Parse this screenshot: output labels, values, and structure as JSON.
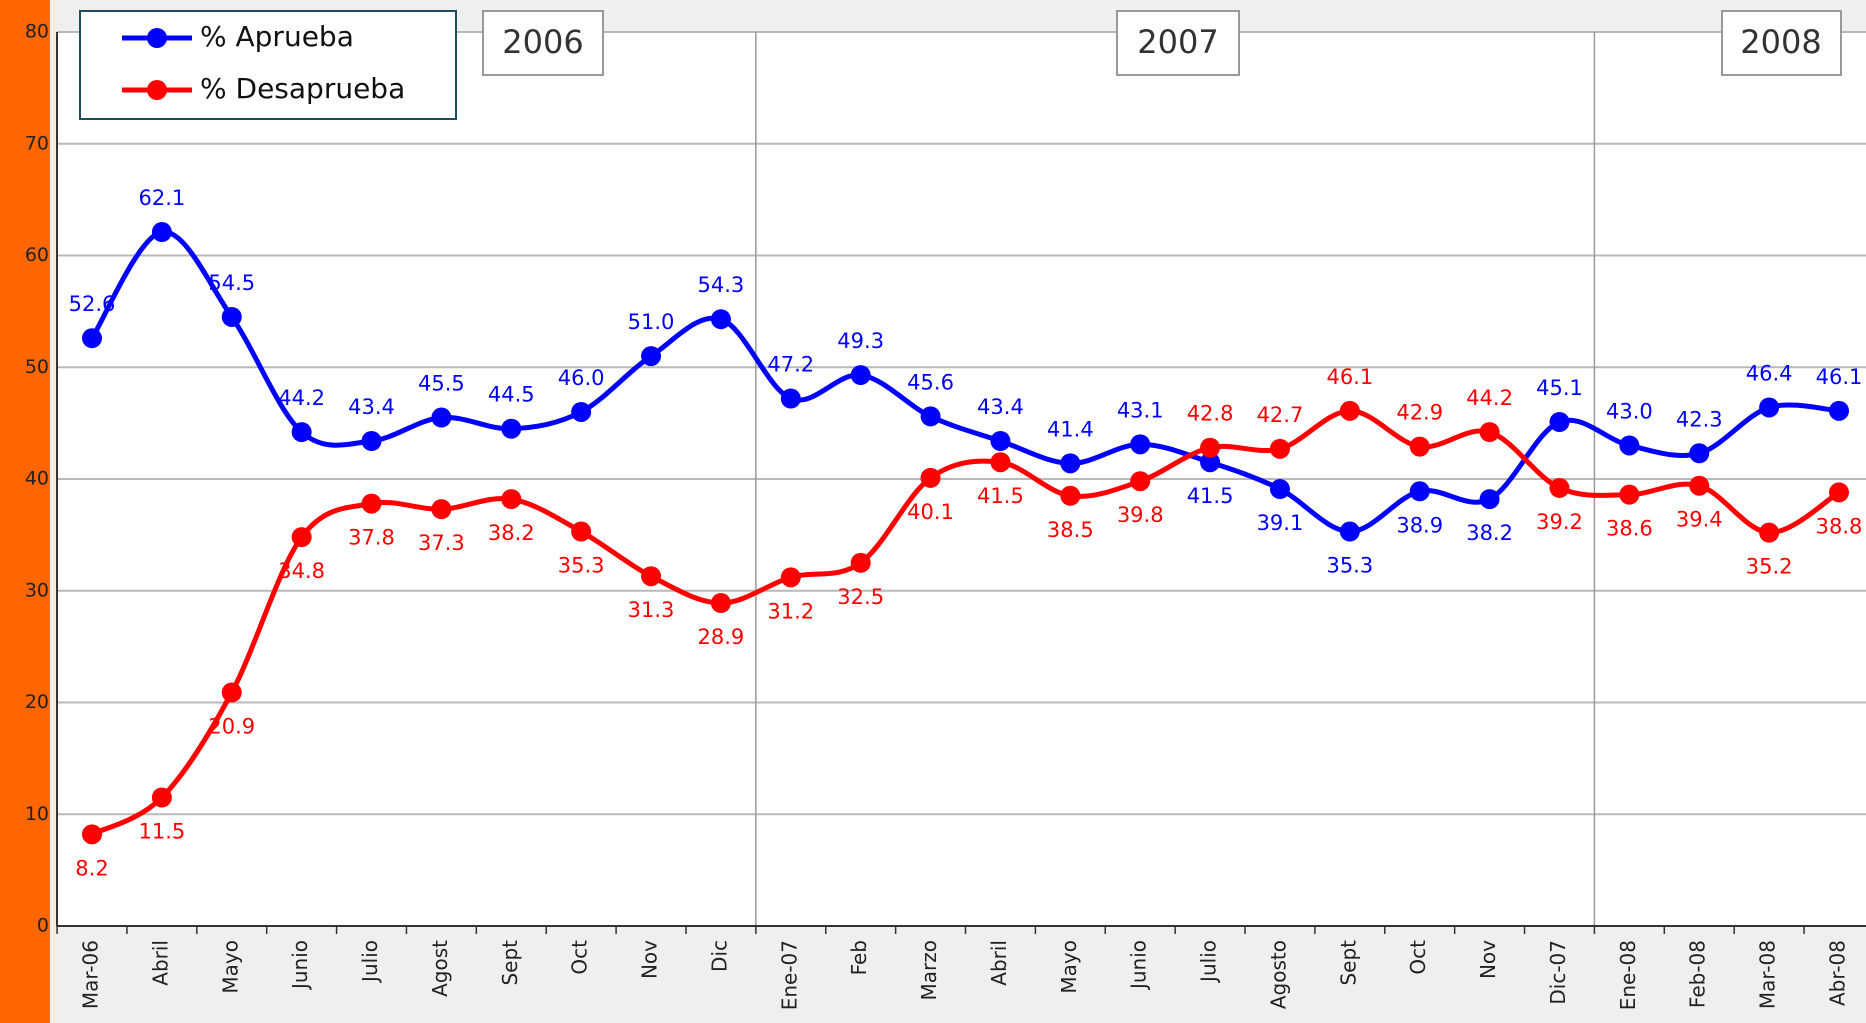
{
  "chart_data": {
    "type": "line",
    "categories": [
      "Mar-06",
      "Abril",
      "Mayo",
      "Junio",
      "Julio",
      "Agost",
      "Sept",
      "Oct",
      "Nov",
      "Dic",
      "Ene-07",
      "Feb",
      "Marzo",
      "Abril",
      "Mayo",
      "Junio",
      "Julio",
      "Agosto",
      "Sept",
      "Oct",
      "Nov",
      "Dic-07",
      "Ene-08",
      "Feb-08",
      "Mar-08",
      "Abr-08"
    ],
    "series": [
      {
        "name": "% Aprueba",
        "color": "#0000ff",
        "values": [
          52.6,
          62.1,
          54.5,
          44.2,
          43.4,
          45.5,
          44.5,
          46.0,
          51.0,
          54.3,
          47.2,
          49.3,
          45.6,
          43.4,
          41.4,
          43.1,
          41.5,
          39.1,
          35.3,
          38.9,
          38.2,
          45.1,
          43.0,
          42.3,
          46.4,
          46.1
        ],
        "value_labels": [
          "52.6",
          "62.1",
          "54.5",
          "44.2",
          "43.4",
          "45.5",
          "44.5",
          "46.0",
          "51.0",
          "54.3",
          "47.2",
          "49.3",
          "45.6",
          "43.4",
          "41.4",
          "43.1",
          "41.5",
          "39.1",
          "35.3",
          "38.9",
          "38.2",
          "45.1",
          "43.0",
          "42.3",
          "46.4",
          "46.1"
        ]
      },
      {
        "name": "% Desaprueba",
        "color": "#ff0000",
        "values": [
          8.2,
          11.5,
          20.9,
          34.8,
          37.8,
          37.3,
          38.2,
          35.3,
          31.3,
          28.9,
          31.2,
          32.5,
          40.1,
          41.5,
          38.5,
          39.8,
          42.8,
          42.7,
          46.1,
          42.9,
          44.2,
          39.2,
          38.6,
          39.4,
          35.2,
          38.8
        ],
        "value_labels": [
          "8.2",
          "11.5",
          "20.9",
          "34.8",
          "37.8",
          "37.3",
          "38.2",
          "35.3",
          "31.3",
          "28.9",
          "31.2",
          "32.5",
          "40.1",
          "41.5",
          "38.5",
          "39.8",
          "42.8",
          "42.7",
          "46.1",
          "42.9",
          "44.2",
          "39.2",
          "38.6",
          "39.4",
          "35.2",
          "38.8"
        ]
      }
    ],
    "annotations": [
      "2006",
      "2007",
      "2008"
    ],
    "ylim": [
      0,
      80
    ],
    "yticks": [
      0,
      10,
      20,
      30,
      40,
      50,
      60,
      70,
      80
    ],
    "grid": true,
    "legend": "top-left"
  }
}
